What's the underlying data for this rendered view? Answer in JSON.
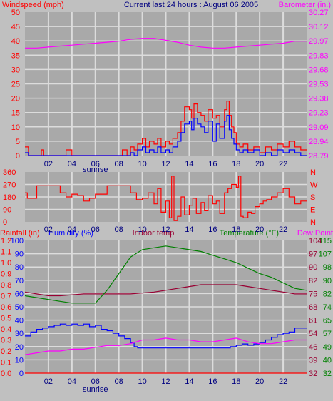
{
  "colors": {
    "background": "#c0c0c0",
    "plot_bg": "#a9a9a9",
    "grid": "#dcdcdc",
    "wind_gust": "#ff0000",
    "wind_avg": "#0000ff",
    "barometer": "#ff00ff",
    "direction": "#ff0000",
    "rain": "#ff0000",
    "humidity": "#0000ff",
    "indoor_temp": "#990033",
    "temperature": "#008000",
    "dew_point": "#ff00ff",
    "title": "#000080"
  },
  "title": "Current last 24 hours : August 06 2005",
  "x_ticks": [
    "02",
    "04",
    "06",
    "08",
    "10",
    "12",
    "14",
    "16",
    "18",
    "20",
    "22"
  ],
  "sunrise_label": "sunrise",
  "chart_data": [
    {
      "type": "line",
      "name": "wind_barometer",
      "left_axis_label": "Windspeed (mph)",
      "right_axis_label": "Barometer (in.)",
      "left_ticks": [
        "0",
        "5",
        "10",
        "15",
        "20",
        "25",
        "30",
        "35",
        "40",
        "45",
        "50"
      ],
      "right_ticks": [
        "28.79",
        "28.94",
        "29.09",
        "29.23",
        "29.38",
        "29.53",
        "29.68",
        "29.83",
        "29.97",
        "30.12",
        "30.27"
      ],
      "ylim": [
        0,
        50
      ],
      "ylim_right": [
        28.79,
        30.27
      ],
      "xlim": [
        0,
        24
      ],
      "grid": true,
      "series": [
        {
          "name": "Windspeed gust",
          "axis": "left",
          "style": "step",
          "x": [
            0,
            0.3,
            0.6,
            1,
            1.4,
            1.6,
            2,
            2.5,
            3,
            3.5,
            4,
            4.5,
            5,
            5.5,
            6,
            6.5,
            7,
            7.5,
            8,
            8.3,
            8.7,
            9,
            9.3,
            9.6,
            10,
            10.3,
            10.6,
            11,
            11.3,
            11.6,
            12,
            12.3,
            12.6,
            13,
            13.3,
            13.6,
            14,
            14.2,
            14.4,
            14.7,
            15,
            15.3,
            15.6,
            16,
            16.3,
            16.6,
            17,
            17.2,
            17.4,
            17.6,
            17.8,
            18,
            18.3,
            18.6,
            19,
            19.5,
            20,
            20.5,
            21,
            21.5,
            22,
            22.5,
            23,
            23.5
          ],
          "y": [
            3,
            0,
            0,
            0,
            2,
            0,
            0,
            0,
            0,
            2,
            0,
            0,
            0,
            0,
            0,
            0,
            0,
            0,
            0,
            2,
            0,
            3,
            2,
            4,
            6,
            3,
            5,
            4,
            6,
            3,
            5,
            4,
            6,
            8,
            12,
            17,
            16,
            13,
            18,
            15,
            14,
            12,
            16,
            13,
            14,
            10,
            16,
            19,
            14,
            10,
            8,
            4,
            3,
            4,
            2,
            3,
            1,
            3,
            2,
            4,
            3,
            5,
            3,
            2
          ]
        },
        {
          "name": "Windspeed avg",
          "axis": "left",
          "style": "step",
          "x": [
            0,
            0.3,
            0.6,
            1,
            2,
            3,
            4,
            5,
            6,
            7,
            8,
            8.5,
            9,
            9.3,
            9.6,
            10,
            10.3,
            10.6,
            11,
            11.3,
            11.6,
            12,
            12.3,
            12.6,
            13,
            13.3,
            13.6,
            14,
            14.2,
            14.4,
            14.7,
            15,
            15.3,
            15.6,
            16,
            16.3,
            16.6,
            17,
            17.2,
            17.4,
            17.6,
            17.8,
            18,
            18.3,
            18.6,
            19,
            19.5,
            20,
            20.5,
            21,
            21.5,
            22,
            22.5,
            23,
            23.5
          ],
          "y": [
            1,
            0,
            0,
            0,
            0,
            0,
            0,
            0,
            0,
            0,
            0,
            0,
            1,
            0,
            2,
            3,
            1,
            2,
            1,
            3,
            1,
            2,
            1,
            3,
            5,
            8,
            11,
            12,
            9,
            13,
            11,
            10,
            8,
            12,
            5,
            11,
            6,
            12,
            14,
            9,
            6,
            4,
            2,
            1,
            2,
            1,
            2,
            0,
            1,
            0,
            2,
            1,
            2,
            1,
            0
          ]
        },
        {
          "name": "Barometer",
          "axis": "right",
          "style": "line",
          "x": [
            0,
            1,
            2,
            3,
            4,
            5,
            6,
            7,
            8,
            9,
            10,
            11,
            12,
            13,
            14,
            15,
            16,
            17,
            18,
            19,
            20,
            21,
            22,
            23,
            24
          ],
          "y": [
            29.9,
            29.9,
            29.91,
            29.92,
            29.93,
            29.94,
            29.95,
            29.96,
            29.97,
            29.99,
            30.0,
            30.0,
            29.98,
            29.96,
            29.93,
            29.91,
            29.9,
            29.9,
            29.91,
            29.92,
            29.93,
            29.94,
            29.95,
            29.97,
            29.97
          ]
        }
      ]
    },
    {
      "type": "line",
      "name": "wind_direction",
      "left_ticks": [
        "0",
        "90",
        "180",
        "270",
        "360"
      ],
      "right_ticks": [
        "N",
        "E",
        "S",
        "W",
        "N"
      ],
      "ylim": [
        0,
        360
      ],
      "xlim": [
        0,
        24
      ],
      "grid": true,
      "series": [
        {
          "name": "Wind direction",
          "style": "step",
          "x": [
            0,
            0.2,
            1,
            2,
            2.5,
            3,
            3.5,
            4,
            4.5,
            5,
            5.5,
            6,
            7,
            8,
            8.5,
            9,
            9.5,
            10,
            10.5,
            11,
            11.3,
            11.6,
            12,
            12.3,
            12.5,
            12.7,
            13,
            13.3,
            13.6,
            14,
            14.3,
            14.6,
            15,
            15.3,
            15.6,
            16,
            16.3,
            16.6,
            17,
            17.3,
            17.6,
            18,
            18.2,
            18.4,
            18.6,
            19,
            19.3,
            19.6,
            20,
            20.3,
            20.6,
            21,
            21.5,
            22,
            22.5,
            23,
            23.5
          ],
          "y": [
            210,
            170,
            260,
            260,
            260,
            210,
            180,
            200,
            190,
            150,
            170,
            200,
            260,
            260,
            260,
            210,
            160,
            170,
            210,
            130,
            240,
            70,
            150,
            30,
            330,
            10,
            40,
            180,
            50,
            120,
            170,
            60,
            140,
            80,
            190,
            130,
            150,
            60,
            210,
            240,
            270,
            250,
            330,
            40,
            30,
            70,
            60,
            110,
            130,
            150,
            160,
            180,
            210,
            240,
            180,
            130,
            150
          ]
        }
      ]
    },
    {
      "type": "line",
      "name": "rain_humidity_temperature",
      "left_axis_label_rain": "Rainfall (in)",
      "left_axis_label_humidity": "Humidity (%)",
      "center_label": "Indoor temp",
      "right_axis_label_temp": "Temperature (°F)",
      "right_axis_label_dew": "Dew Point",
      "rain_ticks": [
        "0.0",
        "0.1",
        "0.2",
        "0.3",
        "0.4",
        "0.5",
        "0.6",
        "0.7",
        "0.8",
        "0.9",
        "1.0",
        "1.1",
        "1.2"
      ],
      "humidity_ticks": [
        "0",
        "10",
        "20",
        "30",
        "40",
        "50",
        "60",
        "70",
        "80",
        "90",
        "100"
      ],
      "indoor_ticks": [
        "32",
        "40",
        "49",
        "57",
        "65",
        "74",
        "82",
        "90",
        "98",
        "107",
        "115"
      ],
      "temp_ticks": [
        "32",
        "39",
        "46",
        "54",
        "61",
        "68",
        "75",
        "82",
        "90",
        "97",
        "104"
      ],
      "ylim_humidity": [
        0,
        100
      ],
      "ylim_temp": [
        32,
        104
      ],
      "xlim": [
        0,
        24
      ],
      "grid": true,
      "series": [
        {
          "name": "Rainfall",
          "axis": "rain",
          "style": "line",
          "x": [
            0,
            24
          ],
          "y": [
            0,
            0
          ]
        },
        {
          "name": "Humidity",
          "axis": "humidity",
          "style": "step",
          "x": [
            0,
            0.5,
            1,
            1.5,
            2,
            2.5,
            3,
            3.5,
            4,
            4.5,
            5,
            5.5,
            6,
            6.5,
            7,
            7.5,
            8,
            8.5,
            9,
            9.3,
            9.6,
            10,
            11,
            12,
            13,
            14,
            15,
            16,
            17,
            17.5,
            18,
            18.5,
            19,
            19.5,
            20,
            20.5,
            21,
            21.5,
            22,
            22.5,
            23,
            23.5
          ],
          "y": [
            28,
            31,
            33,
            34,
            35,
            36,
            37,
            36,
            37,
            36,
            37,
            35,
            36,
            33,
            32,
            30,
            28,
            26,
            23,
            20,
            19,
            19,
            19,
            19,
            19,
            19,
            19,
            19,
            19,
            20,
            21,
            22,
            21,
            22,
            23,
            25,
            27,
            29,
            30,
            31,
            34,
            34
          ]
        },
        {
          "name": "Indoor temp",
          "axis": "temp",
          "style": "line",
          "x": [
            0,
            1,
            2,
            3,
            4,
            5,
            6,
            7,
            8,
            9,
            10,
            11,
            12,
            13,
            14,
            15,
            16,
            17,
            18,
            19,
            20,
            21,
            22,
            23,
            24
          ],
          "y": [
            76,
            75,
            74,
            74,
            74.5,
            75,
            75,
            75,
            75,
            75,
            75.5,
            76,
            77,
            78,
            79,
            80,
            80,
            80,
            80,
            79,
            78,
            77,
            76,
            75,
            75
          ]
        },
        {
          "name": "Temperature",
          "axis": "temp",
          "style": "line",
          "x": [
            0,
            1,
            2,
            3,
            4,
            5,
            6,
            7,
            8,
            9,
            10,
            11,
            12,
            13,
            14,
            15,
            16,
            17,
            18,
            19,
            20,
            21,
            22,
            23,
            24
          ],
          "y": [
            74,
            73,
            72,
            71,
            70,
            70,
            70,
            77,
            86,
            95,
            99,
            100,
            101,
            100,
            99,
            98,
            96,
            94,
            92,
            89,
            86,
            84,
            81,
            78,
            77
          ]
        },
        {
          "name": "Dew Point",
          "axis": "temp",
          "style": "line",
          "x": [
            0,
            1,
            2,
            3,
            4,
            5,
            6,
            7,
            8,
            9,
            10,
            11,
            12,
            13,
            14,
            15,
            16,
            17,
            18,
            19,
            20,
            21,
            22,
            23,
            24
          ],
          "y": [
            42,
            43,
            44,
            44,
            45,
            45,
            46,
            47,
            47,
            48,
            50,
            50,
            51,
            50,
            50,
            49,
            49,
            50,
            51,
            49,
            48,
            48,
            49,
            50,
            50
          ]
        }
      ]
    }
  ]
}
